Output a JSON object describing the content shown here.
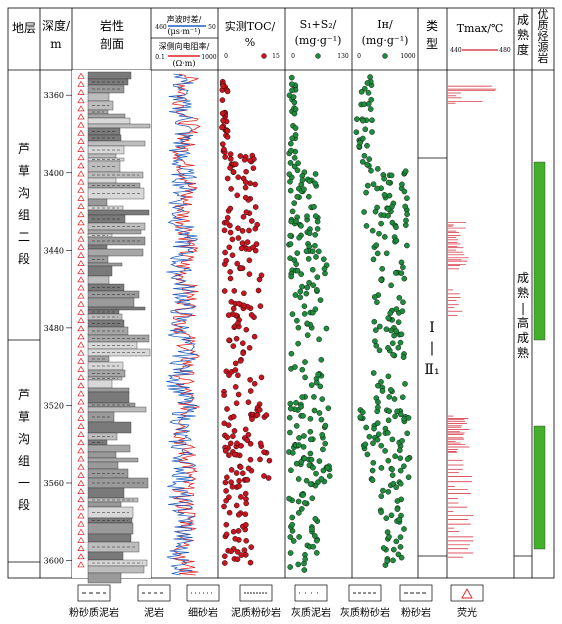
{
  "headers": {
    "stratum": "地层",
    "depth": [
      "深度/",
      "m"
    ],
    "lithology": [
      "岩性",
      "剖面"
    ],
    "log_top": [
      "声波时差/",
      "(μs·m⁻¹)"
    ],
    "log_top_min": "460",
    "log_top_max": "50",
    "log_bottom": [
      "深侧向电阻率/",
      "(Ω·m)"
    ],
    "log_bottom_min": "0.1",
    "log_bottom_max": "1000",
    "toc": [
      "实测TOC/",
      "%"
    ],
    "toc_min": "0",
    "toc_max": "15",
    "s1s2": [
      "S₁+S₂/",
      "(mg·g⁻¹)"
    ],
    "s1s2_min": "0",
    "s1s2_max": "130",
    "ih": [
      "Iʜ/",
      "(mg·g⁻¹)"
    ],
    "ih_min": "0",
    "ih_max": "1000",
    "type": "类型",
    "tmax": "Tmax/℃",
    "tmax_min": "440",
    "tmax_max": "480",
    "maturity": "成熟度",
    "sweet": "优质烃源岩"
  },
  "strata": [
    {
      "name": "芦草沟组二段",
      "chars": [
        "芦",
        "草",
        "沟",
        "组",
        "二",
        "段"
      ]
    },
    {
      "name": "芦草沟组一段",
      "chars": [
        "芦",
        "草",
        "沟",
        "组",
        "一",
        "段"
      ]
    }
  ],
  "depth_ticks": [
    "3360",
    "3400",
    "3440",
    "3480",
    "3520",
    "3560",
    "3600"
  ],
  "type_label": [
    "Ⅰ",
    "|",
    "Ⅱ₁"
  ],
  "maturity_label": [
    "成",
    "熟",
    "|",
    "高",
    "成",
    "熟"
  ],
  "legend": [
    {
      "label": "粉砂质泥岩",
      "pattern": "silty-mudstone"
    },
    {
      "label": "泥岩",
      "pattern": "mudstone"
    },
    {
      "label": "细砂岩",
      "pattern": "fine-sandstone"
    },
    {
      "label": "泥质粉砂岩",
      "pattern": "argillaceous-siltstone"
    },
    {
      "label": "灰质泥岩",
      "pattern": "calcareous-mudstone"
    },
    {
      "label": "灰质粉砂岩",
      "pattern": "calcareous-siltstone"
    },
    {
      "label": "粉砂岩",
      "pattern": "siltstone"
    },
    {
      "label": "荧光",
      "pattern": "fluorescence"
    }
  ],
  "colors": {
    "acoustic": "#1f5fbf",
    "resistivity": "#e02020",
    "toc": "#c8141e",
    "s1s2": "#1e8c3c",
    "ih": "#1e8c3c",
    "tmax": "#d21e2d",
    "sweet": "#43b02a",
    "lith": "#8c8c8c"
  }
}
